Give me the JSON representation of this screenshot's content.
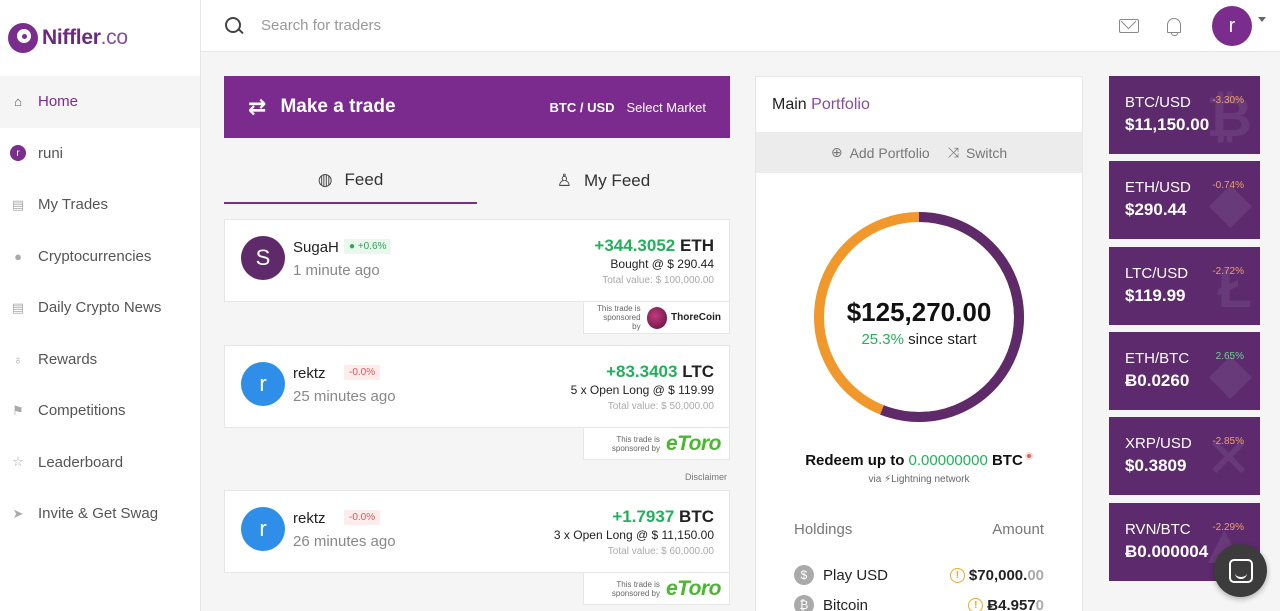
{
  "brand": {
    "name": "Niffler",
    "suffix": ".co"
  },
  "sidebar": {
    "items": [
      {
        "label": "Home",
        "icon": "home-icon",
        "glyph": "⌂"
      },
      {
        "label": "runi",
        "icon": "avatar",
        "glyph": "r"
      },
      {
        "label": "My Trades",
        "icon": "trades-icon",
        "glyph": "▤"
      },
      {
        "label": "Cryptocurrencies",
        "icon": "coin-icon",
        "glyph": "●"
      },
      {
        "label": "Daily Crypto News",
        "icon": "news-icon",
        "glyph": "▤"
      },
      {
        "label": "Rewards",
        "icon": "award-icon",
        "glyph": "♁"
      },
      {
        "label": "Competitions",
        "icon": "flag-icon",
        "glyph": "⚑"
      },
      {
        "label": "Leaderboard",
        "icon": "star-icon",
        "glyph": "☆"
      },
      {
        "label": "Invite & Get Swag",
        "icon": "send-icon",
        "glyph": "➤"
      }
    ]
  },
  "header": {
    "search_placeholder": "Search for traders",
    "user_initial": "r"
  },
  "trade_bar": {
    "title": "Make a trade",
    "pair": "BTC / USD",
    "select": "Select Market"
  },
  "tabs": [
    {
      "label": "Feed",
      "glyph": "◍"
    },
    {
      "label": "My Feed",
      "glyph": "♙"
    }
  ],
  "feed": [
    {
      "initial": "S",
      "color": "#5e2a6a",
      "user": "SugaH",
      "badge": "+0.6%",
      "badge_type": "green",
      "time": "1 minute ago",
      "amount": "+344.3052",
      "currency": "ETH",
      "detail": "Bought @ $ 290.44",
      "total": "Total value: $ 100,000.00",
      "sponsor_line1": "This trade is",
      "sponsor_line2": "sponsored by",
      "sponsor": "ThoreCoin"
    },
    {
      "initial": "r",
      "color": "#2f8fe8",
      "user": "rektz",
      "badge": "-0.0%",
      "badge_type": "red",
      "time": "25 minutes ago",
      "amount": "+83.3403",
      "currency": "LTC",
      "detail": "5 x Open Long @ $ 119.99",
      "total": "Total value: $ 50,000.00",
      "sponsor_line1": "This trade is",
      "sponsor_line2": "sponsored by",
      "sponsor": "eToro"
    },
    {
      "initial": "r",
      "color": "#2f8fe8",
      "user": "rektz",
      "badge": "-0.0%",
      "badge_type": "red",
      "time": "26 minutes ago",
      "amount": "+1.7937",
      "currency": "BTC",
      "detail": "3 x Open Long @ $ 11,150.00",
      "total": "Total value: $ 60,000.00",
      "sponsor_line1": "This trade is",
      "sponsor_line2": "sponsored by",
      "sponsor": "eToro"
    }
  ],
  "disclaimer": "Disclaimer",
  "portfolio": {
    "title_main": "Main",
    "title_light": "Portfolio",
    "add_label": "Add Portfolio",
    "switch_label": "Switch",
    "balance": "$125,270.00",
    "since_pct": "25.3%",
    "since_text": "since start",
    "donut_fraction": 0.56,
    "donut_color_a": "#5e2a6a",
    "donut_color_b": "#f0982c",
    "redeem_prefix": "Redeem up to",
    "redeem_amount": "0.00000000",
    "redeem_currency": "BTC",
    "via_prefix": "via",
    "via_text": "Lightning network",
    "holdings_label": "Holdings",
    "amount_label": "Amount",
    "holdings": [
      {
        "name": "Play USD",
        "icon": "dollar-icon",
        "glyph": "$",
        "value": "$70,000.",
        "dim": "00"
      },
      {
        "name": "Bitcoin",
        "icon": "bitcoin-icon",
        "glyph": "₿",
        "value": "Ƀ4.957",
        "dim": "0"
      }
    ]
  },
  "tickers": [
    {
      "pair": "BTC/USD",
      "change": "-3.30%",
      "dir": "neg",
      "price": "$11,150.00",
      "bg": "₿"
    },
    {
      "pair": "ETH/USD",
      "change": "-0.74%",
      "dir": "neg",
      "price": "$290.44",
      "bg": "◆"
    },
    {
      "pair": "LTC/USD",
      "change": "-2.72%",
      "dir": "neg",
      "price": "$119.99",
      "bg": "Ł"
    },
    {
      "pair": "ETH/BTC",
      "change": "2.65%",
      "dir": "pos",
      "price": "Ƀ0.0260",
      "bg": "◆"
    },
    {
      "pair": "XRP/USD",
      "change": "-2.85%",
      "dir": "neg",
      "price": "$0.3809",
      "bg": "✕"
    },
    {
      "pair": "RVN/BTC",
      "change": "-2.29%",
      "dir": "neg",
      "price": "Ƀ0.000004",
      "bg": "▲"
    }
  ]
}
